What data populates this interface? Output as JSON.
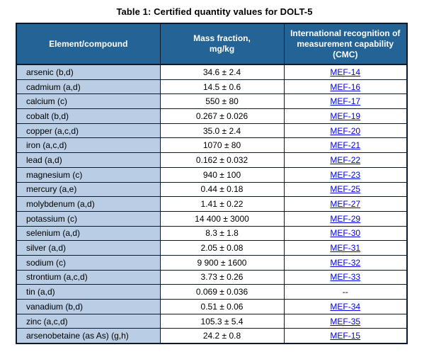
{
  "title": "Table 1: Certified quantity values for DOLT-5",
  "colors": {
    "header_background": "#236396",
    "header_text": "#ffffff",
    "element_column_background": "#b9cde5",
    "link_color": "#0000ee",
    "border_color": "#0b1a2a"
  },
  "table": {
    "columns": [
      "Element/compound",
      "Mass fraction,\nmg/kg",
      "International recognition of measurement capability (CMC)"
    ],
    "rows": [
      {
        "element": "arsenic (b,d)",
        "mass_fraction": "34.6 ± 2.4",
        "cmc": "MEF-14",
        "cmc_is_link": true
      },
      {
        "element": "cadmium (a,d)",
        "mass_fraction": "14.5 ± 0.6",
        "cmc": "MEF-16",
        "cmc_is_link": true
      },
      {
        "element": "calcium (c)",
        "mass_fraction": "550 ± 80",
        "cmc": "MEF-17",
        "cmc_is_link": true
      },
      {
        "element": "cobalt (b,d)",
        "mass_fraction": "0.267 ± 0.026",
        "cmc": "MEF-19",
        "cmc_is_link": true
      },
      {
        "element": "copper (a,c,d)",
        "mass_fraction": "35.0 ± 2.4",
        "cmc": "MEF-20",
        "cmc_is_link": true
      },
      {
        "element": "iron (a,c,d)",
        "mass_fraction": "1070 ± 80",
        "cmc": "MEF-21",
        "cmc_is_link": true
      },
      {
        "element": "lead (a,d)",
        "mass_fraction": "0.162 ± 0.032",
        "cmc": "MEF-22",
        "cmc_is_link": true
      },
      {
        "element": "magnesium (c)",
        "mass_fraction": "940 ± 100",
        "cmc": "MEF-23",
        "cmc_is_link": true
      },
      {
        "element": "mercury (a,e)",
        "mass_fraction": "0.44 ± 0.18",
        "cmc": "MEF-25",
        "cmc_is_link": true
      },
      {
        "element": "molybdenum (a,d)",
        "mass_fraction": "1.41 ± 0.22",
        "cmc": "MEF-27",
        "cmc_is_link": true
      },
      {
        "element": "potassium (c)",
        "mass_fraction": "14 400 ± 3000",
        "cmc": "MEF-29",
        "cmc_is_link": true
      },
      {
        "element": "selenium (a,d)",
        "mass_fraction": "8.3 ± 1.8",
        "cmc": "MEF-30",
        "cmc_is_link": true
      },
      {
        "element": "silver (a,d)",
        "mass_fraction": "2.05 ± 0.08",
        "cmc": "MEF-31",
        "cmc_is_link": true
      },
      {
        "element": "sodium (c)",
        "mass_fraction": "9 900 ± 1600",
        "cmc": "MEF-32",
        "cmc_is_link": true
      },
      {
        "element": "strontium (a,c,d)",
        "mass_fraction": "3.73 ± 0.26",
        "cmc": "MEF-33",
        "cmc_is_link": true
      },
      {
        "element": "tin (a,d)",
        "mass_fraction": "0.069 ± 0.036",
        "cmc": "--",
        "cmc_is_link": false
      },
      {
        "element": "vanadium (b,d)",
        "mass_fraction": "0.51 ± 0.06",
        "cmc": "MEF-34",
        "cmc_is_link": true
      },
      {
        "element": "zinc (a,c,d)",
        "mass_fraction": "105.3 ± 5.4",
        "cmc": "MEF-35",
        "cmc_is_link": true
      },
      {
        "element": "arsenobetaine (as As) (g,h)",
        "mass_fraction": "24.2 ± 0.8",
        "cmc": "MEF-15",
        "cmc_is_link": true
      }
    ]
  }
}
